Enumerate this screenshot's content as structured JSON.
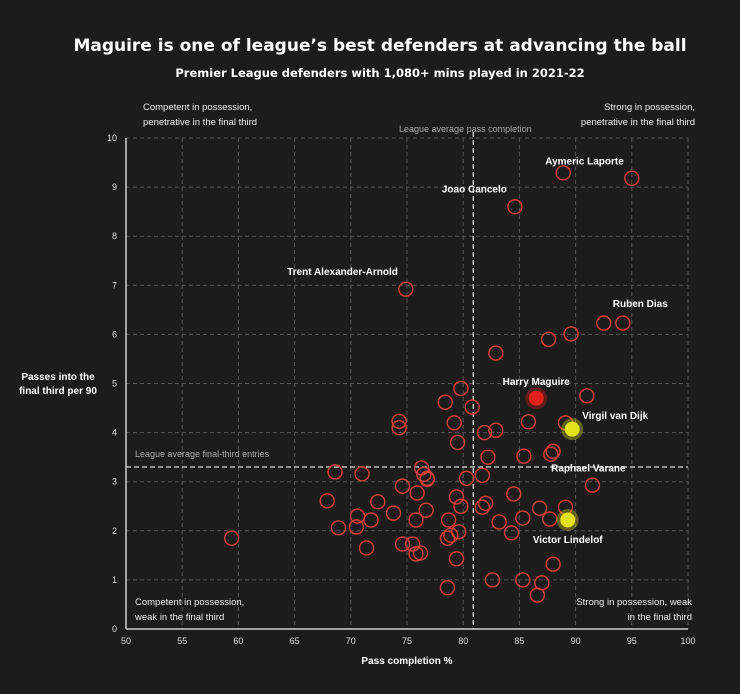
{
  "chart_data": {
    "type": "scatter",
    "title": "Maguire is one of league’s best defenders at advancing the ball",
    "subtitle": "Premier League defenders with 1,080+ mins played in 2021-22",
    "xlabel": "Pass completion %",
    "ylabel_lines": [
      "Passes into the",
      "final third per 90"
    ],
    "xlim": [
      50,
      100
    ],
    "ylim": [
      0,
      10
    ],
    "xticks": [
      50,
      55,
      60,
      65,
      70,
      75,
      80,
      85,
      90,
      95,
      100
    ],
    "yticks": [
      0,
      1,
      2,
      3,
      4,
      5,
      6,
      7,
      8,
      9,
      10
    ],
    "grid": true,
    "reference_lines": [
      {
        "axis": "x",
        "value": 80.9,
        "label": "League average pass completion"
      },
      {
        "axis": "y",
        "value": 3.3,
        "label": "League average final-third entries"
      }
    ],
    "quadrant_labels": {
      "top_left": [
        "Competent in possession,",
        "penetrative in the final third"
      ],
      "top_right": [
        "Strong in possession,",
        "penetrative in the final third"
      ],
      "bottom_left": [
        "Competent in possession,",
        "weak in the final third"
      ],
      "bottom_right": [
        "Strong in possession, weak",
        "in the final third"
      ]
    },
    "colors": {
      "default": "#d8403a",
      "maguire": "#e3201c",
      "highlight": "#e2e21a",
      "background": "#1c1c1c"
    },
    "highlighted": [
      {
        "name": "Harry Maguire",
        "x": 86.5,
        "y": 4.7,
        "color": "maguire",
        "label_pos": "above"
      },
      {
        "name": "Virgil van Dijk",
        "x": 89.7,
        "y": 4.07,
        "color": "highlight",
        "label_pos": "right-up"
      },
      {
        "name": "Victor Lindelof",
        "x": 89.3,
        "y": 2.22,
        "color": "highlight",
        "label_pos": "below"
      }
    ],
    "labeled": [
      {
        "name": "Aymeric Laporte",
        "x": 95.0,
        "y": 9.18,
        "label_pos": "above-left"
      },
      {
        "name": "Joao Cancelo",
        "x": 84.6,
        "y": 8.6,
        "label_pos": "above-left"
      },
      {
        "name": "Trent Alexander-Arnold",
        "x": 74.9,
        "y": 6.92,
        "label_pos": "above-left"
      },
      {
        "name": "Ruben Dias",
        "x": 94.2,
        "y": 6.23,
        "label_pos": "above-right"
      },
      {
        "name": "Raphael Varane",
        "x": 88.0,
        "y": 3.62,
        "label_pos": "right-down"
      }
    ],
    "points": [
      {
        "x": 88.9,
        "y": 9.29
      },
      {
        "x": 89.6,
        "y": 6.01
      },
      {
        "x": 92.5,
        "y": 6.23
      },
      {
        "x": 87.6,
        "y": 5.9
      },
      {
        "x": 82.9,
        "y": 5.62
      },
      {
        "x": 91.0,
        "y": 4.75
      },
      {
        "x": 89.1,
        "y": 4.2
      },
      {
        "x": 87.8,
        "y": 3.56
      },
      {
        "x": 85.4,
        "y": 3.52
      },
      {
        "x": 79.8,
        "y": 4.9
      },
      {
        "x": 78.4,
        "y": 4.62
      },
      {
        "x": 80.8,
        "y": 4.52
      },
      {
        "x": 79.2,
        "y": 4.2
      },
      {
        "x": 79.5,
        "y": 3.8
      },
      {
        "x": 74.3,
        "y": 4.23
      },
      {
        "x": 74.3,
        "y": 4.1
      },
      {
        "x": 81.9,
        "y": 4.0
      },
      {
        "x": 82.9,
        "y": 4.05
      },
      {
        "x": 85.8,
        "y": 4.22
      },
      {
        "x": 82.2,
        "y": 3.5
      },
      {
        "x": 91.5,
        "y": 2.93
      },
      {
        "x": 76.8,
        "y": 3.07
      },
      {
        "x": 80.3,
        "y": 3.07
      },
      {
        "x": 81.7,
        "y": 3.13
      },
      {
        "x": 84.5,
        "y": 2.75
      },
      {
        "x": 79.4,
        "y": 2.69
      },
      {
        "x": 79.8,
        "y": 2.5
      },
      {
        "x": 76.7,
        "y": 2.42
      },
      {
        "x": 81.7,
        "y": 2.48
      },
      {
        "x": 82.0,
        "y": 2.56
      },
      {
        "x": 86.8,
        "y": 2.46
      },
      {
        "x": 89.1,
        "y": 2.48
      },
      {
        "x": 78.7,
        "y": 2.22
      },
      {
        "x": 83.2,
        "y": 2.18
      },
      {
        "x": 85.3,
        "y": 2.26
      },
      {
        "x": 87.7,
        "y": 2.24
      },
      {
        "x": 79.6,
        "y": 1.98
      },
      {
        "x": 78.6,
        "y": 1.85
      },
      {
        "x": 78.9,
        "y": 1.91
      },
      {
        "x": 84.3,
        "y": 1.96
      },
      {
        "x": 88.0,
        "y": 1.32
      },
      {
        "x": 79.4,
        "y": 1.43
      },
      {
        "x": 82.6,
        "y": 1.0
      },
      {
        "x": 85.3,
        "y": 1.0
      },
      {
        "x": 87.0,
        "y": 0.94
      },
      {
        "x": 78.6,
        "y": 0.84
      },
      {
        "x": 86.6,
        "y": 0.69
      },
      {
        "x": 76.3,
        "y": 3.28
      },
      {
        "x": 76.5,
        "y": 3.15
      },
      {
        "x": 76.8,
        "y": 3.05
      },
      {
        "x": 68.6,
        "y": 3.2
      },
      {
        "x": 71.0,
        "y": 3.16
      },
      {
        "x": 74.6,
        "y": 2.91
      },
      {
        "x": 75.9,
        "y": 2.77
      },
      {
        "x": 67.9,
        "y": 2.61
      },
      {
        "x": 72.4,
        "y": 2.59
      },
      {
        "x": 70.6,
        "y": 2.3
      },
      {
        "x": 71.8,
        "y": 2.22
      },
      {
        "x": 73.8,
        "y": 2.36
      },
      {
        "x": 75.8,
        "y": 2.22
      },
      {
        "x": 68.9,
        "y": 2.06
      },
      {
        "x": 70.5,
        "y": 2.08
      },
      {
        "x": 59.4,
        "y": 1.85
      },
      {
        "x": 74.6,
        "y": 1.73
      },
      {
        "x": 75.5,
        "y": 1.73
      },
      {
        "x": 75.8,
        "y": 1.53
      },
      {
        "x": 71.4,
        "y": 1.65
      },
      {
        "x": 76.2,
        "y": 1.55
      }
    ]
  }
}
